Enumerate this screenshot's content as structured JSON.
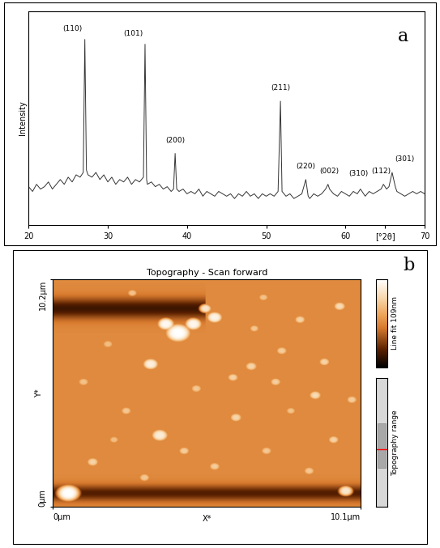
{
  "chart_data": [
    {
      "type": "line",
      "panel_label": "a",
      "ylabel": "Intensity",
      "color": "#333333",
      "x": [
        20,
        20.5,
        21,
        21.5,
        22,
        22.5,
        23,
        23.5,
        24,
        24.5,
        25,
        25.5,
        26,
        26.5,
        26.9,
        27.1,
        27.3,
        27.5,
        28,
        28.5,
        29,
        29.5,
        30,
        30.5,
        31,
        31.5,
        32,
        32.5,
        33,
        33.5,
        34,
        34.5,
        34.7,
        34.9,
        35,
        35.5,
        36,
        36.5,
        37,
        37.5,
        38,
        38.3,
        38.5,
        38.7,
        39,
        39.5,
        40,
        40.5,
        41,
        41.5,
        42,
        42.5,
        43,
        43.5,
        44,
        44.5,
        45,
        45.5,
        46,
        46.5,
        47,
        47.5,
        48,
        48.5,
        49,
        49.5,
        50,
        50.5,
        51,
        51.5,
        51.8,
        52,
        52.5,
        53,
        53.5,
        54,
        54.5,
        55,
        55.3,
        55.5,
        56,
        56.5,
        57,
        57.5,
        57.8,
        58,
        58.5,
        59,
        59.5,
        60,
        60.5,
        61,
        61.5,
        61.9,
        62.3,
        62.5,
        63,
        63.5,
        64,
        64.5,
        64.8,
        65.2,
        65.5,
        65.9,
        66.3,
        66.5,
        67,
        67.5,
        68,
        68.5,
        69,
        69.5,
        70
      ],
      "values": [
        36,
        34,
        37,
        35,
        36,
        38,
        35,
        37,
        39,
        37,
        40,
        38,
        41,
        40,
        42,
        98,
        43,
        41,
        40,
        42,
        39,
        41,
        38,
        40,
        37,
        39,
        38,
        40,
        37,
        39,
        38,
        40,
        96,
        39,
        37,
        38,
        36,
        37,
        35,
        36,
        34,
        35,
        50,
        35,
        34,
        35,
        33,
        34,
        33,
        35,
        32,
        34,
        33,
        32,
        34,
        33,
        32,
        33,
        31,
        33,
        32,
        34,
        32,
        33,
        31,
        33,
        32,
        33,
        32,
        34,
        72,
        34,
        32,
        33,
        31,
        32,
        33,
        39,
        32,
        31,
        33,
        32,
        33,
        35,
        37,
        35,
        33,
        32,
        34,
        33,
        32,
        34,
        33,
        35,
        33,
        32,
        34,
        33,
        34,
        35,
        37,
        35,
        36,
        42,
        36,
        34,
        33,
        32,
        33,
        34,
        33,
        34,
        33
      ],
      "xlim": [
        20,
        70
      ],
      "ylim": [
        20,
        110
      ],
      "xticks": [
        20,
        30,
        40,
        50,
        60,
        {
          "value": 65,
          "label": "[°2θ]"
        },
        70
      ],
      "yticks": [],
      "tick_labels": "x",
      "annotations": [
        {
          "text": "(110)",
          "x": 25.5,
          "y": 101
        },
        {
          "text": "(101)",
          "x": 33.2,
          "y": 99
        },
        {
          "text": "(200)",
          "x": 38.5,
          "y": 54
        },
        {
          "text": "(211)",
          "x": 51.8,
          "y": 76
        },
        {
          "text": "(220)",
          "x": 55.0,
          "y": 43
        },
        {
          "text": "(002)",
          "x": 58.0,
          "y": 41
        },
        {
          "text": "(310)",
          "x": 61.6,
          "y": 40
        },
        {
          "text": "(112)",
          "x": 64.5,
          "y": 41
        },
        {
          "text": "(301)",
          "x": 67.5,
          "y": 46
        }
      ]
    },
    {
      "type": "image",
      "panel_label": "b",
      "title": "Topography - Scan forward",
      "xlabel": "X*",
      "ylabel": "Y*",
      "xlim": [
        0,
        10.1
      ],
      "ylim": [
        0,
        10.2
      ],
      "xticks": [
        {
          "value": 0,
          "label": "0µm"
        },
        {
          "value": 10.1,
          "label": "10.1µm"
        }
      ],
      "yticks": [
        {
          "value": 0,
          "label": "0µm"
        },
        {
          "value": 10.2,
          "label": "10.2µm"
        }
      ],
      "clim": [
        0,
        109
      ],
      "colorbar_label": "Line fit 109nm",
      "colorbar_ticks": [],
      "range_label": "Topography range",
      "background": 55,
      "bands": [
        {
          "y": 8.9,
          "width": 0.45,
          "depth": 40,
          "x_from": 0,
          "x_to": 5.0
        },
        {
          "y": 0.6,
          "width": 0.35,
          "depth": 35,
          "x_from": 0,
          "x_to": 10.1
        }
      ],
      "grains": [
        {
          "x": 4.1,
          "y": 7.8,
          "r": 0.45,
          "h": 109
        },
        {
          "x": 3.7,
          "y": 8.2,
          "r": 0.3,
          "h": 105
        },
        {
          "x": 4.6,
          "y": 8.2,
          "r": 0.3,
          "h": 104
        },
        {
          "x": 3.2,
          "y": 6.4,
          "r": 0.28,
          "h": 100
        },
        {
          "x": 5.3,
          "y": 8.5,
          "r": 0.28,
          "h": 102
        },
        {
          "x": 5.0,
          "y": 8.9,
          "r": 0.22,
          "h": 95
        },
        {
          "x": 0.5,
          "y": 0.6,
          "r": 0.4,
          "h": 109
        },
        {
          "x": 9.6,
          "y": 0.7,
          "r": 0.25,
          "h": 95
        },
        {
          "x": 3.5,
          "y": 3.2,
          "r": 0.3,
          "h": 98
        },
        {
          "x": 1.3,
          "y": 2.0,
          "r": 0.22,
          "h": 85
        },
        {
          "x": 2.4,
          "y": 4.3,
          "r": 0.2,
          "h": 80
        },
        {
          "x": 1.0,
          "y": 5.6,
          "r": 0.2,
          "h": 78
        },
        {
          "x": 6.5,
          "y": 6.3,
          "r": 0.22,
          "h": 85
        },
        {
          "x": 7.5,
          "y": 7.0,
          "r": 0.2,
          "h": 82
        },
        {
          "x": 8.6,
          "y": 5.0,
          "r": 0.22,
          "h": 88
        },
        {
          "x": 9.2,
          "y": 3.0,
          "r": 0.2,
          "h": 84
        },
        {
          "x": 6.0,
          "y": 4.0,
          "r": 0.22,
          "h": 86
        },
        {
          "x": 7.0,
          "y": 2.5,
          "r": 0.2,
          "h": 80
        },
        {
          "x": 5.3,
          "y": 1.8,
          "r": 0.2,
          "h": 82
        },
        {
          "x": 8.1,
          "y": 8.4,
          "r": 0.2,
          "h": 84
        },
        {
          "x": 9.4,
          "y": 9.0,
          "r": 0.22,
          "h": 88
        },
        {
          "x": 2.6,
          "y": 9.6,
          "r": 0.18,
          "h": 78
        },
        {
          "x": 1.8,
          "y": 7.3,
          "r": 0.2,
          "h": 76
        },
        {
          "x": 4.7,
          "y": 5.3,
          "r": 0.2,
          "h": 80
        },
        {
          "x": 6.6,
          "y": 8.0,
          "r": 0.18,
          "h": 80
        },
        {
          "x": 8.9,
          "y": 6.5,
          "r": 0.2,
          "h": 85
        },
        {
          "x": 3.0,
          "y": 1.3,
          "r": 0.2,
          "h": 80
        },
        {
          "x": 7.8,
          "y": 4.3,
          "r": 0.18,
          "h": 78
        },
        {
          "x": 5.9,
          "y": 5.8,
          "r": 0.2,
          "h": 84
        },
        {
          "x": 2.0,
          "y": 3.0,
          "r": 0.18,
          "h": 76
        },
        {
          "x": 9.8,
          "y": 4.8,
          "r": 0.2,
          "h": 82
        },
        {
          "x": 6.9,
          "y": 9.4,
          "r": 0.18,
          "h": 78
        },
        {
          "x": 4.3,
          "y": 2.5,
          "r": 0.2,
          "h": 82
        },
        {
          "x": 8.4,
          "y": 1.6,
          "r": 0.2,
          "h": 80
        },
        {
          "x": 7.3,
          "y": 5.6,
          "r": 0.2,
          "h": 83
        }
      ]
    }
  ]
}
